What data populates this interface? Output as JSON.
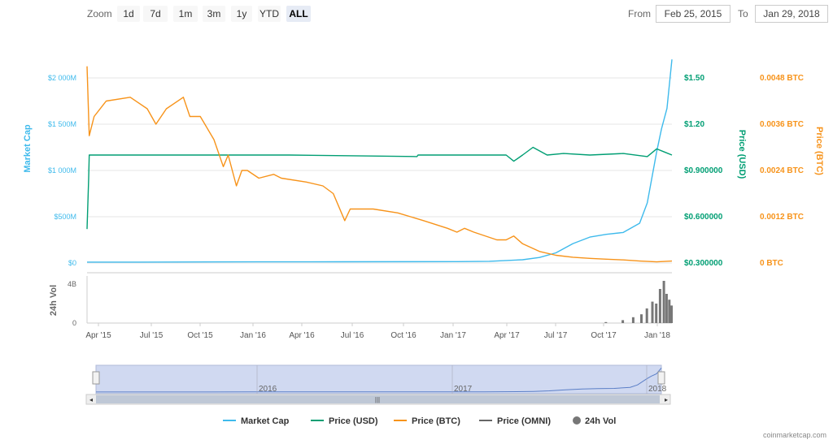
{
  "toolbar": {
    "zoom_label": "Zoom",
    "zoom_buttons": [
      "1d",
      "7d",
      "1m",
      "3m",
      "1y",
      "YTD",
      "ALL"
    ],
    "selected_zoom": "ALL",
    "from_label": "From",
    "from_value": "Feb 25, 2015",
    "to_label": "To",
    "to_value": "Jan 29, 2018"
  },
  "credit": "coinmarketcap.com",
  "colors": {
    "market_cap": "#3ebaec",
    "price_usd": "#009e73",
    "price_btc": "#f7931a",
    "price_omni": "#666666",
    "volume": "#777777",
    "navigator_fill": "#c8d2ee"
  },
  "chart_data": {
    "type": "line",
    "x_range": [
      "2015-02-25",
      "2018-01-29"
    ],
    "x_ticks": [
      "Apr '15",
      "Jul '15",
      "Oct '15",
      "Jan '16",
      "Apr '16",
      "Jul '16",
      "Oct '16",
      "Jan '17",
      "Apr '17",
      "Jul '17",
      "Oct '17",
      "Jan '18"
    ],
    "axes": {
      "market_cap": {
        "label": "Market Cap",
        "ticks": [
          "$0",
          "$500M",
          "$1 000M",
          "$1 500M",
          "$2 000M"
        ],
        "range": [
          0,
          2000
        ]
      },
      "price_usd": {
        "label": "Price (USD)",
        "ticks": [
          "$0.300000",
          "$0.600000",
          "$0.900000",
          "$1.20",
          "$1.50"
        ],
        "range": [
          0.3,
          1.5
        ]
      },
      "price_btc": {
        "label": "Price (BTC)",
        "ticks": [
          "0 BTC",
          "0.0012 BTC",
          "0.0024 BTC",
          "0.0036 BTC",
          "0.0048 BTC"
        ],
        "range": [
          0,
          0.0048
        ]
      },
      "volume": {
        "label": "24h Vol",
        "ticks": [
          "0",
          "4B"
        ],
        "range": [
          0,
          4
        ]
      }
    },
    "series": [
      {
        "name": "Market Cap",
        "axis": "market_cap",
        "x": [
          "2015-02-25",
          "2015-06-01",
          "2016-01-01",
          "2016-06-01",
          "2017-01-01",
          "2017-03-01",
          "2017-05-01",
          "2017-06-01",
          "2017-07-01",
          "2017-08-01",
          "2017-09-01",
          "2017-10-01",
          "2017-11-01",
          "2017-12-01",
          "2017-12-15",
          "2018-01-01",
          "2018-01-10",
          "2018-01-20",
          "2018-01-29"
        ],
        "y": [
          10,
          10,
          12,
          13,
          15,
          18,
          35,
          60,
          110,
          210,
          280,
          310,
          330,
          430,
          650,
          1200,
          1450,
          1670,
          2200
        ]
      },
      {
        "name": "Price (USD)",
        "axis": "price_usd",
        "x": [
          "2015-02-25",
          "2015-02-28",
          "2015-03-01",
          "2016-03-01",
          "2016-10-20",
          "2016-10-22",
          "2016-11-01",
          "2017-04-01",
          "2017-04-15",
          "2017-05-01",
          "2017-05-20",
          "2017-06-15",
          "2017-07-15",
          "2017-09-01",
          "2017-11-01",
          "2017-12-15",
          "2018-01-01",
          "2018-01-15",
          "2018-01-29"
        ],
        "y": [
          0.52,
          0.85,
          1.0,
          1.0,
          0.99,
          1.0,
          1.0,
          1.0,
          0.96,
          1.0,
          1.05,
          1.0,
          1.01,
          1.0,
          1.01,
          0.99,
          1.04,
          1.02,
          1.0
        ]
      },
      {
        "name": "Price (BTC)",
        "axis": "price_btc",
        "x": [
          "2015-02-25",
          "2015-03-01",
          "2015-03-10",
          "2015-04-01",
          "2015-05-15",
          "2015-06-15",
          "2015-07-01",
          "2015-07-20",
          "2015-08-20",
          "2015-09-01",
          "2015-09-20",
          "2015-10-15",
          "2015-11-01",
          "2015-11-10",
          "2015-11-25",
          "2015-12-05",
          "2015-12-15",
          "2016-01-05",
          "2016-02-01",
          "2016-02-15",
          "2016-04-01",
          "2016-05-01",
          "2016-05-20",
          "2016-06-10",
          "2016-06-20",
          "2016-08-01",
          "2016-09-15",
          "2016-11-01",
          "2016-12-15",
          "2017-01-01",
          "2017-01-15",
          "2017-02-01",
          "2017-03-15",
          "2017-04-01",
          "2017-04-15",
          "2017-05-01",
          "2017-06-01",
          "2017-07-01",
          "2017-08-01",
          "2017-09-01",
          "2017-10-01",
          "2017-11-01",
          "2017-12-01",
          "2018-01-01",
          "2018-01-29"
        ],
        "y": [
          0.0051,
          0.0033,
          0.0038,
          0.0042,
          0.0043,
          0.004,
          0.0036,
          0.004,
          0.0043,
          0.0038,
          0.0038,
          0.0032,
          0.0025,
          0.0028,
          0.002,
          0.0024,
          0.0024,
          0.0022,
          0.0023,
          0.0022,
          0.0021,
          0.002,
          0.0018,
          0.0011,
          0.0014,
          0.0014,
          0.0013,
          0.0011,
          0.0009,
          0.0008,
          0.0009,
          0.0008,
          0.0006,
          0.0006,
          0.0007,
          0.0005,
          0.0003,
          0.0002,
          0.00015,
          0.00012,
          0.0001,
          8e-05,
          5e-05,
          3e-05,
          5e-05
        ]
      },
      {
        "name": "Price (OMNI)",
        "axis": "price_usd",
        "x": [],
        "y": []
      },
      {
        "name": "24h Vol",
        "axis": "volume",
        "x": [
          "2017-10-01",
          "2017-11-01",
          "2017-11-20",
          "2017-12-05",
          "2017-12-15",
          "2017-12-25",
          "2018-01-01",
          "2018-01-08",
          "2018-01-15",
          "2018-01-20",
          "2018-01-25",
          "2018-01-29"
        ],
        "y": [
          0.1,
          0.3,
          0.6,
          0.9,
          1.5,
          2.2,
          2.0,
          3.5,
          4.8,
          3.0,
          2.4,
          1.8
        ]
      }
    ],
    "legend": [
      "Market Cap",
      "Price (USD)",
      "Price (BTC)",
      "Price (OMNI)",
      "24h Vol"
    ],
    "legend_position": "bottom",
    "navigator": {
      "labels": [
        "2016",
        "2017",
        "2018"
      ],
      "selected": "all"
    }
  }
}
